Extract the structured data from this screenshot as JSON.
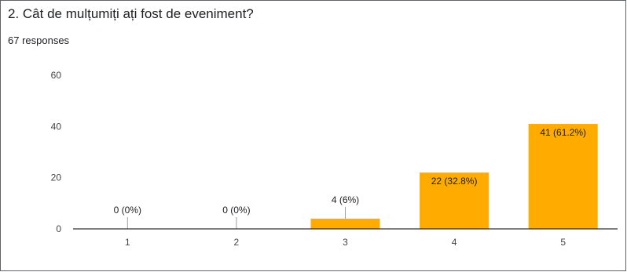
{
  "question": {
    "title": "2. Cât de mulțumiți ați fost de eveniment?",
    "responses": "67 responses"
  },
  "chart_data": {
    "type": "bar",
    "categories": [
      "1",
      "2",
      "3",
      "4",
      "5"
    ],
    "values": [
      0,
      0,
      4,
      22,
      41
    ],
    "data_labels": [
      "0 (0%)",
      "0 (0%)",
      "4 (6%)",
      "22 (32.8%)",
      "41 (61.2%)"
    ],
    "y_ticks": [
      0,
      20,
      40,
      60
    ],
    "ylim": [
      0,
      60
    ],
    "bar_color": "#ffab00",
    "grid": false,
    "legend": "none"
  }
}
